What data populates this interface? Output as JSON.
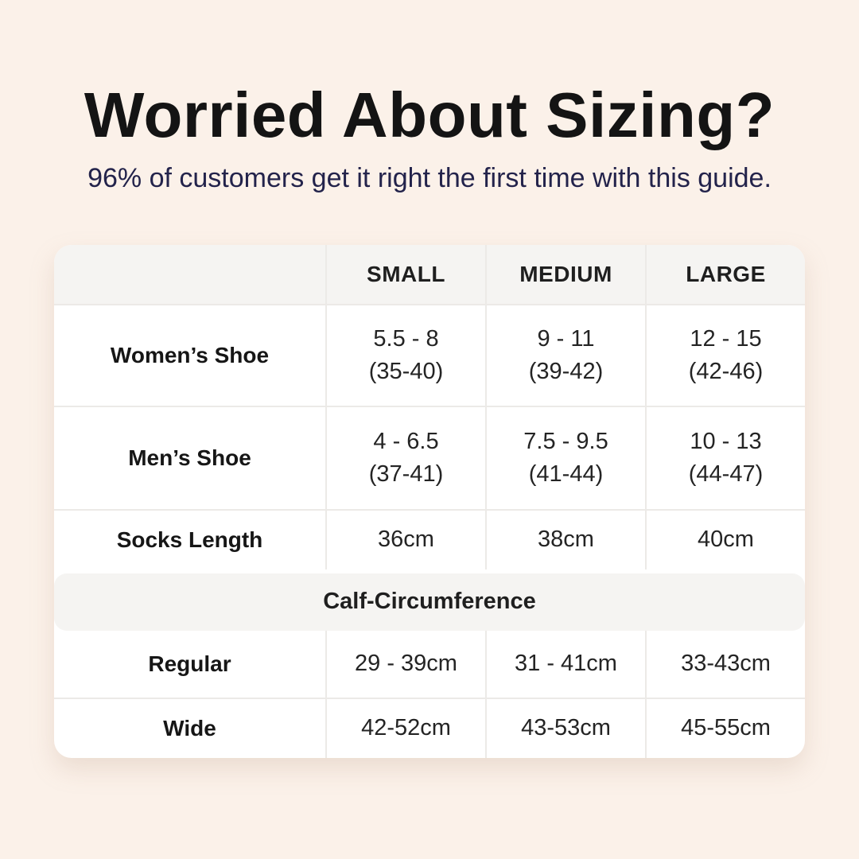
{
  "chart_data": {
    "type": "table",
    "title": "Worried About Sizing?",
    "subtitle": "96% of customers get it right the first time with this guide.",
    "column_headers": [
      "",
      "SMALL",
      "MEDIUM",
      "LARGE"
    ],
    "rows": [
      {
        "label": "Women’s Shoe",
        "values": [
          [
            "5.5 - 8",
            "(35-40)"
          ],
          [
            "9 - 11",
            "(39-42)"
          ],
          [
            "12 - 15",
            "(42-46)"
          ]
        ]
      },
      {
        "label": "Men’s Shoe",
        "values": [
          [
            "4 - 6.5",
            "(37-41)"
          ],
          [
            "7.5 - 9.5",
            "(41-44)"
          ],
          [
            "10 - 13",
            "(44-47)"
          ]
        ]
      },
      {
        "label": "Socks Length",
        "values": [
          [
            "36cm"
          ],
          [
            "38cm"
          ],
          [
            "40cm"
          ]
        ]
      }
    ],
    "section_header": "Calf-Circumference",
    "section_rows": [
      {
        "label": "Regular",
        "values": [
          [
            "29 - 39cm"
          ],
          [
            "31 - 41cm"
          ],
          [
            "33-43cm"
          ]
        ]
      },
      {
        "label": "Wide",
        "values": [
          [
            "42-52cm"
          ],
          [
            "43-53cm"
          ],
          [
            "45-55cm"
          ]
        ]
      }
    ]
  },
  "colors": {
    "page_background": "#FBF1E9",
    "card_background": "#FFFFFF",
    "header_band_background": "#F5F4F2",
    "divider": "#ECEAE7",
    "title_text": "#141414",
    "subtitle_text": "#23234B",
    "table_text": "#1F1F1F"
  }
}
